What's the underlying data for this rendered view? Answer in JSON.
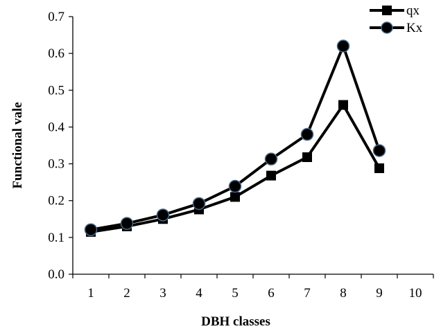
{
  "chart_data": {
    "type": "line",
    "xlabel": "DBH classes",
    "ylabel": "Functional vale",
    "x": [
      1,
      2,
      3,
      4,
      5,
      6,
      7,
      8,
      9
    ],
    "x_ticks": [
      "1",
      "2",
      "3",
      "4",
      "5",
      "6",
      "7",
      "8",
      "9",
      "10"
    ],
    "xlim": [
      0.5,
      10.5
    ],
    "y_ticks": [
      "0.0",
      "0.1",
      "0.2",
      "0.3",
      "0.4",
      "0.5",
      "0.6",
      "0.7"
    ],
    "ylim": [
      0,
      0.7
    ],
    "grid": false,
    "legend_position": "top-right",
    "series": [
      {
        "name": "qx",
        "marker": "square",
        "color": "#000000",
        "values": [
          0.115,
          0.13,
          0.15,
          0.176,
          0.21,
          0.268,
          0.318,
          0.46,
          0.288
        ]
      },
      {
        "name": "Kx",
        "marker": "circle",
        "color": "#000000",
        "values": [
          0.121,
          0.138,
          0.161,
          0.192,
          0.239,
          0.313,
          0.38,
          0.62,
          0.336
        ]
      }
    ]
  }
}
